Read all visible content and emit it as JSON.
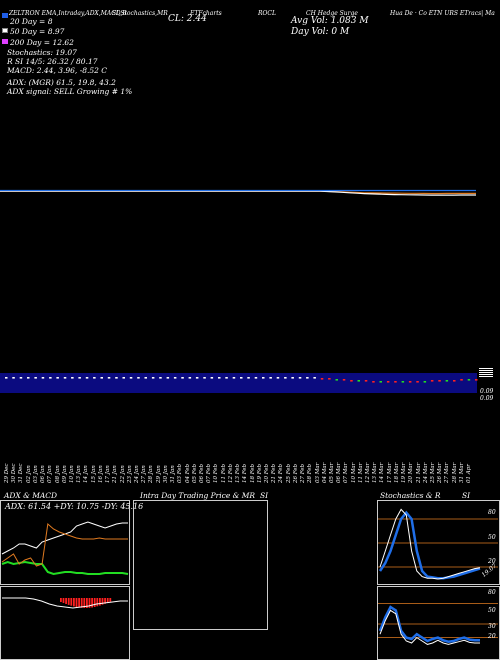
{
  "header": {
    "title_line": "ZELTRON  EMA,Intraday,ADX,MACD,B",
    "subtitle_2": "SI,Stochastics,MR",
    "subtitle_3": "ETFcharts",
    "ticker_note": "ROCL",
    "close_label": "CL: 2.44",
    "sym_note": "CH Hedge Surge",
    "avg_vol": "Avg Vol: 1.083 M",
    "day_vol": "Day Vol: 0   M",
    "company_note": "Hua De · Co ETN  URS ETracs| Ma",
    "ema20": "20  Day = 8",
    "ema50": "50  Day = 8.97",
    "ema200": "200  Day = 12.62",
    "stochastics": "Stochastics: 19.07",
    "si": "R                   SI 14/5: 26.32  / 80.17",
    "macd": "MACD: 2.44,  3.96,  -8.52  C",
    "adx": "ADX:                    (MGR) 61.5,  19.8,  43.2",
    "adx_signal": "ADX  signal: SELL Growing # 1%"
  },
  "colors": {
    "ema20": "#1f5ee8",
    "ema50": "#ffffff",
    "ema200": "#e040ff",
    "orange": "#e07a20",
    "blue": "#1f6ee8",
    "green": "#22dd22",
    "red": "#ff2020",
    "volume_band": "#0b0b80"
  },
  "price_scale": {
    "a": "0.09",
    "b": "0.09"
  },
  "dates": [
    "29 Dec",
    "30 Dec",
    "31 Dec",
    "02 Jan",
    "03 Jan",
    "06 Jan",
    "07 Jan",
    "08 Jan",
    "09 Jan",
    "10 Jan",
    "13 Jan",
    "14 Jan",
    "15 Jan",
    "16 Jan",
    "17 Jan",
    "21 Jan",
    "22 Jan",
    "23 Jan",
    "24 Jan",
    "27 Jan",
    "28 Jan",
    "29 Jan",
    "30 Jan",
    "31 Jan",
    "03 Feb",
    "04 Feb",
    "05 Feb",
    "06 Feb",
    "07 Feb",
    "10 Feb",
    "11 Feb",
    "12 Feb",
    "13 Feb",
    "14 Feb",
    "18 Feb",
    "19 Feb",
    "20 Feb",
    "21 Feb",
    "24 Feb",
    "25 Feb",
    "26 Feb",
    "27 Feb",
    "28 Feb",
    "03 Mar",
    "04 Mar",
    "05 Mar",
    "06 Mar",
    "07 Mar",
    "10 Mar",
    "11 Mar",
    "12 Mar",
    "13 Mar",
    "14 Mar",
    "17 Mar",
    "18 Mar",
    "19 Mar",
    "20 Mar",
    "21 Mar",
    "24 Mar",
    "25 Mar",
    "26 Mar",
    "27 Mar",
    "28 Mar",
    "31 Mar",
    "01 Apr"
  ],
  "panels": {
    "adx_title": "ADX  & MACD",
    "adx_readout": "ADX: 61.54  +DY: 10.75  -DY: 45.16",
    "intraday_title": "Intra  Day Trading Price  & MR",
    "intraday_si": "SI",
    "stoch_title": "Stochastics & R",
    "stoch_si": "SI",
    "stoch_ticks": [
      "80",
      "50",
      "20"
    ],
    "si_ticks": [
      "80",
      "50",
      "30",
      "20"
    ],
    "stoch_end_label": "19.07"
  },
  "chart_data": [
    {
      "type": "line",
      "name": "main price / EMA overlay",
      "series": [
        {
          "name": "20 Day",
          "values": [
            0.3,
            0.3,
            0.3,
            0.3,
            0.3,
            0.3,
            0.3,
            0.3,
            0.3,
            0.3,
            0.3,
            0.3,
            0.3,
            0.3,
            0.3,
            0.3,
            0.3,
            0.3,
            0.3,
            0.3,
            0.3,
            0.3,
            0.3,
            0.3,
            0.3,
            0.3,
            0.3,
            0.3,
            0.3,
            0.3,
            0.3,
            0.3,
            0.3,
            0.3,
            0.3,
            0.3,
            0.3,
            0.3,
            0.3,
            0.3,
            0.3,
            0.3,
            0.3,
            0.32,
            0.4,
            0.6,
            0.9,
            1.2,
            1.5,
            1.8,
            1.9,
            2.0,
            2.1,
            2.1,
            2.2,
            2.3,
            2.3,
            2.4,
            2.5,
            2.5,
            2.4,
            2.4,
            2.4,
            2.4,
            2.4
          ]
        },
        {
          "name": "50 Day",
          "values": [
            0.1,
            0.1,
            0.1,
            0.1,
            0.1,
            0.1,
            0.1,
            0.1,
            0.1,
            0.1,
            0.1,
            0.1,
            0.1,
            0.1,
            0.1,
            0.1,
            0.1,
            0.1,
            0.1,
            0.1,
            0.1,
            0.1,
            0.1,
            0.1,
            0.1,
            0.1,
            0.1,
            0.1,
            0.1,
            0.1,
            0.1,
            0.1,
            0.1,
            0.1,
            0.1,
            0.1,
            0.1,
            0.1,
            0.1,
            0.1,
            0.1,
            0.1,
            0.1,
            0.2,
            0.5,
            0.9,
            1.3,
            1.8,
            2.2,
            2.6,
            2.9,
            3.1,
            3.4,
            3.6,
            3.7,
            3.8,
            3.9,
            4.0,
            4.1,
            4.1,
            4.1,
            4.1,
            4.0,
            4.0,
            4.0
          ]
        },
        {
          "name": "200 Day",
          "values": [
            -0.5,
            -0.5,
            -0.5,
            -0.5,
            -0.5,
            -0.5,
            -0.5,
            -0.5,
            -0.5,
            -0.5,
            -0.5,
            -0.5,
            -0.5,
            -0.5,
            -0.5,
            -0.5,
            -0.5,
            -0.5,
            -0.5,
            -0.5,
            -0.5,
            -0.5,
            -0.5,
            -0.5,
            -0.5,
            -0.5,
            -0.5,
            -0.5,
            -0.5,
            -0.5,
            -0.5,
            -0.5,
            -0.5,
            -0.5,
            -0.5,
            -0.5,
            -0.5,
            -0.5,
            -0.5,
            -0.5,
            -0.5,
            -0.5,
            -0.5,
            -0.5,
            -0.5,
            -0.5,
            -0.5,
            -0.5,
            -0.5,
            -0.5,
            -0.5,
            -0.5,
            -0.5,
            -0.5,
            -0.5,
            -0.5,
            -0.5,
            -0.5,
            -0.5,
            -0.5,
            -0.5,
            -0.5,
            -0.5,
            -0.5,
            -0.5
          ]
        }
      ]
    },
    {
      "type": "bar",
      "name": "volume / MACD strip",
      "values": [
        0,
        0,
        0,
        0,
        0,
        0,
        0,
        0,
        0,
        0,
        0,
        0,
        0,
        0,
        0,
        0,
        0,
        0,
        0,
        0,
        0,
        0,
        0,
        0,
        0,
        0,
        0,
        0,
        0,
        0,
        0,
        0,
        0,
        0,
        0,
        0,
        0,
        0,
        0,
        0,
        0,
        0,
        0,
        -1,
        -1,
        -2,
        -2,
        -3,
        -3,
        -3,
        -4,
        -4,
        -4,
        -4,
        -4,
        -4,
        -4,
        -4,
        -3,
        -3,
        -3,
        -3,
        -2,
        -2,
        -2
      ]
    },
    {
      "type": "line",
      "name": "ADX & MACD",
      "series": [
        {
          "name": "ADX",
          "values": [
            30,
            33,
            36,
            40,
            40,
            38,
            36,
            42,
            44,
            46,
            48,
            50,
            52,
            58,
            60,
            62,
            60,
            58,
            56,
            58,
            60,
            61,
            61
          ]
        },
        {
          "name": "+DY",
          "values": [
            20,
            22,
            20,
            21,
            22,
            21,
            20,
            20,
            12,
            10,
            11,
            12,
            12,
            11,
            11,
            10,
            10,
            10,
            11,
            11,
            11,
            11,
            10
          ]
        },
        {
          "name": "-DY",
          "values": [
            22,
            26,
            30,
            20,
            24,
            26,
            18,
            20,
            60,
            55,
            52,
            50,
            48,
            46,
            45,
            45,
            45,
            46,
            45,
            45,
            45,
            45,
            45
          ]
        }
      ]
    },
    {
      "type": "line",
      "name": "Stochastics",
      "ylim": [
        0,
        100
      ],
      "series": [
        {
          "name": "K",
          "values": [
            20,
            40,
            60,
            80,
            92,
            85,
            40,
            15,
            8,
            6,
            6,
            5,
            6,
            8,
            10,
            12,
            14,
            16,
            18,
            19
          ]
        },
        {
          "name": "D",
          "values": [
            15,
            25,
            40,
            60,
            80,
            88,
            80,
            40,
            15,
            8,
            7,
            6,
            6,
            7,
            8,
            10,
            12,
            14,
            16,
            18
          ]
        }
      ]
    },
    {
      "type": "line",
      "name": "SI",
      "ylim": [
        0,
        100
      ],
      "series": [
        {
          "name": "SI 14",
          "values": [
            40,
            60,
            75,
            70,
            40,
            30,
            28,
            35,
            30,
            25,
            28,
            30,
            26,
            24,
            25,
            28,
            30,
            27,
            26,
            26
          ]
        },
        {
          "name": "SI 5",
          "values": [
            35,
            55,
            70,
            65,
            35,
            25,
            22,
            30,
            25,
            20,
            22,
            26,
            22,
            20,
            22,
            24,
            26,
            23,
            22,
            22
          ]
        }
      ]
    }
  ]
}
